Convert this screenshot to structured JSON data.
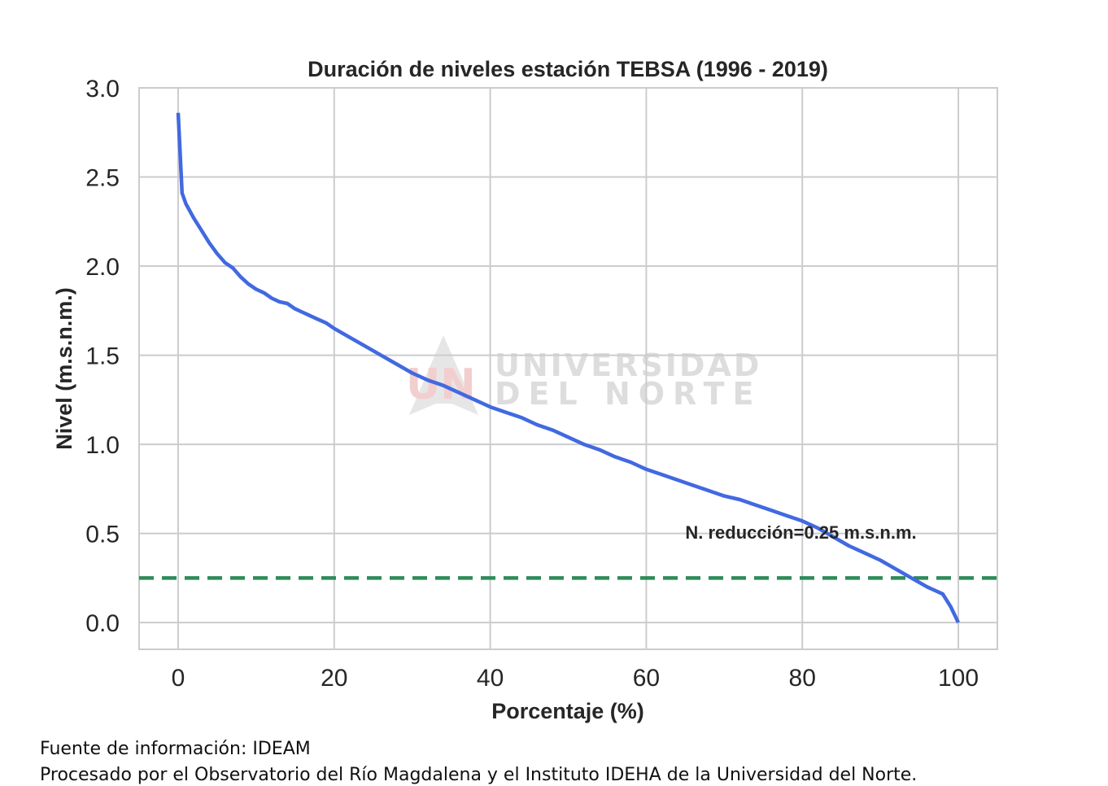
{
  "chart_data": {
    "type": "line",
    "title": "Duración de niveles estación TEBSA (1996 - 2019)",
    "xlabel": "Porcentaje (%)",
    "ylabel": "Nivel (m.s.n.m.)",
    "xlim": [
      -5,
      105
    ],
    "ylim": [
      -0.15,
      3.0
    ],
    "xticks": [
      0,
      20,
      40,
      60,
      80,
      100
    ],
    "xtick_labels": [
      "0",
      "20",
      "40",
      "60",
      "80",
      "100"
    ],
    "yticks": [
      0.0,
      0.5,
      1.0,
      1.5,
      2.0,
      2.5,
      3.0
    ],
    "ytick_labels": [
      "0.0",
      "0.5",
      "1.0",
      "1.5",
      "2.0",
      "2.5",
      "3.0"
    ],
    "grid": true,
    "series": [
      {
        "color": "#4169e1",
        "x": [
          0,
          0.5,
          1,
          2,
          3,
          4,
          5,
          6,
          7,
          8,
          9,
          10,
          11,
          12,
          13,
          14,
          15,
          16,
          17,
          18,
          19,
          20,
          22,
          24,
          26,
          28,
          30,
          32,
          34,
          36,
          38,
          40,
          42,
          44,
          46,
          48,
          50,
          52,
          54,
          56,
          58,
          60,
          62,
          64,
          66,
          68,
          70,
          72,
          74,
          76,
          78,
          80,
          82,
          84,
          86,
          88,
          90,
          92,
          94,
          96,
          98,
          99,
          100
        ],
        "y": [
          2.86,
          2.41,
          2.35,
          2.27,
          2.2,
          2.13,
          2.07,
          2.02,
          1.99,
          1.94,
          1.9,
          1.87,
          1.85,
          1.82,
          1.8,
          1.79,
          1.76,
          1.74,
          1.72,
          1.7,
          1.68,
          1.65,
          1.6,
          1.55,
          1.5,
          1.45,
          1.4,
          1.36,
          1.33,
          1.29,
          1.25,
          1.21,
          1.18,
          1.15,
          1.11,
          1.08,
          1.04,
          1.0,
          0.97,
          0.93,
          0.9,
          0.86,
          0.83,
          0.8,
          0.77,
          0.74,
          0.71,
          0.69,
          0.66,
          0.63,
          0.6,
          0.57,
          0.53,
          0.48,
          0.43,
          0.39,
          0.35,
          0.3,
          0.25,
          0.2,
          0.16,
          0.09,
          0.0
        ]
      }
    ],
    "reference_line": {
      "y": 0.25,
      "color": "#2e8b57",
      "style": "dashed"
    },
    "annotation": {
      "text": "N. reducción=0.25 m.s.n.m.",
      "x": 65,
      "y": 0.47
    }
  },
  "watermark": {
    "line1": "UNIVERSIDAD",
    "line2": "DEL  NORTE",
    "logo_text": "UN"
  },
  "footer": {
    "line1": "Fuente de información: IDEAM",
    "line2": "Procesado por el Observatorio del Río Magdalena y el Instituto IDEHA de la Universidad del Norte."
  }
}
